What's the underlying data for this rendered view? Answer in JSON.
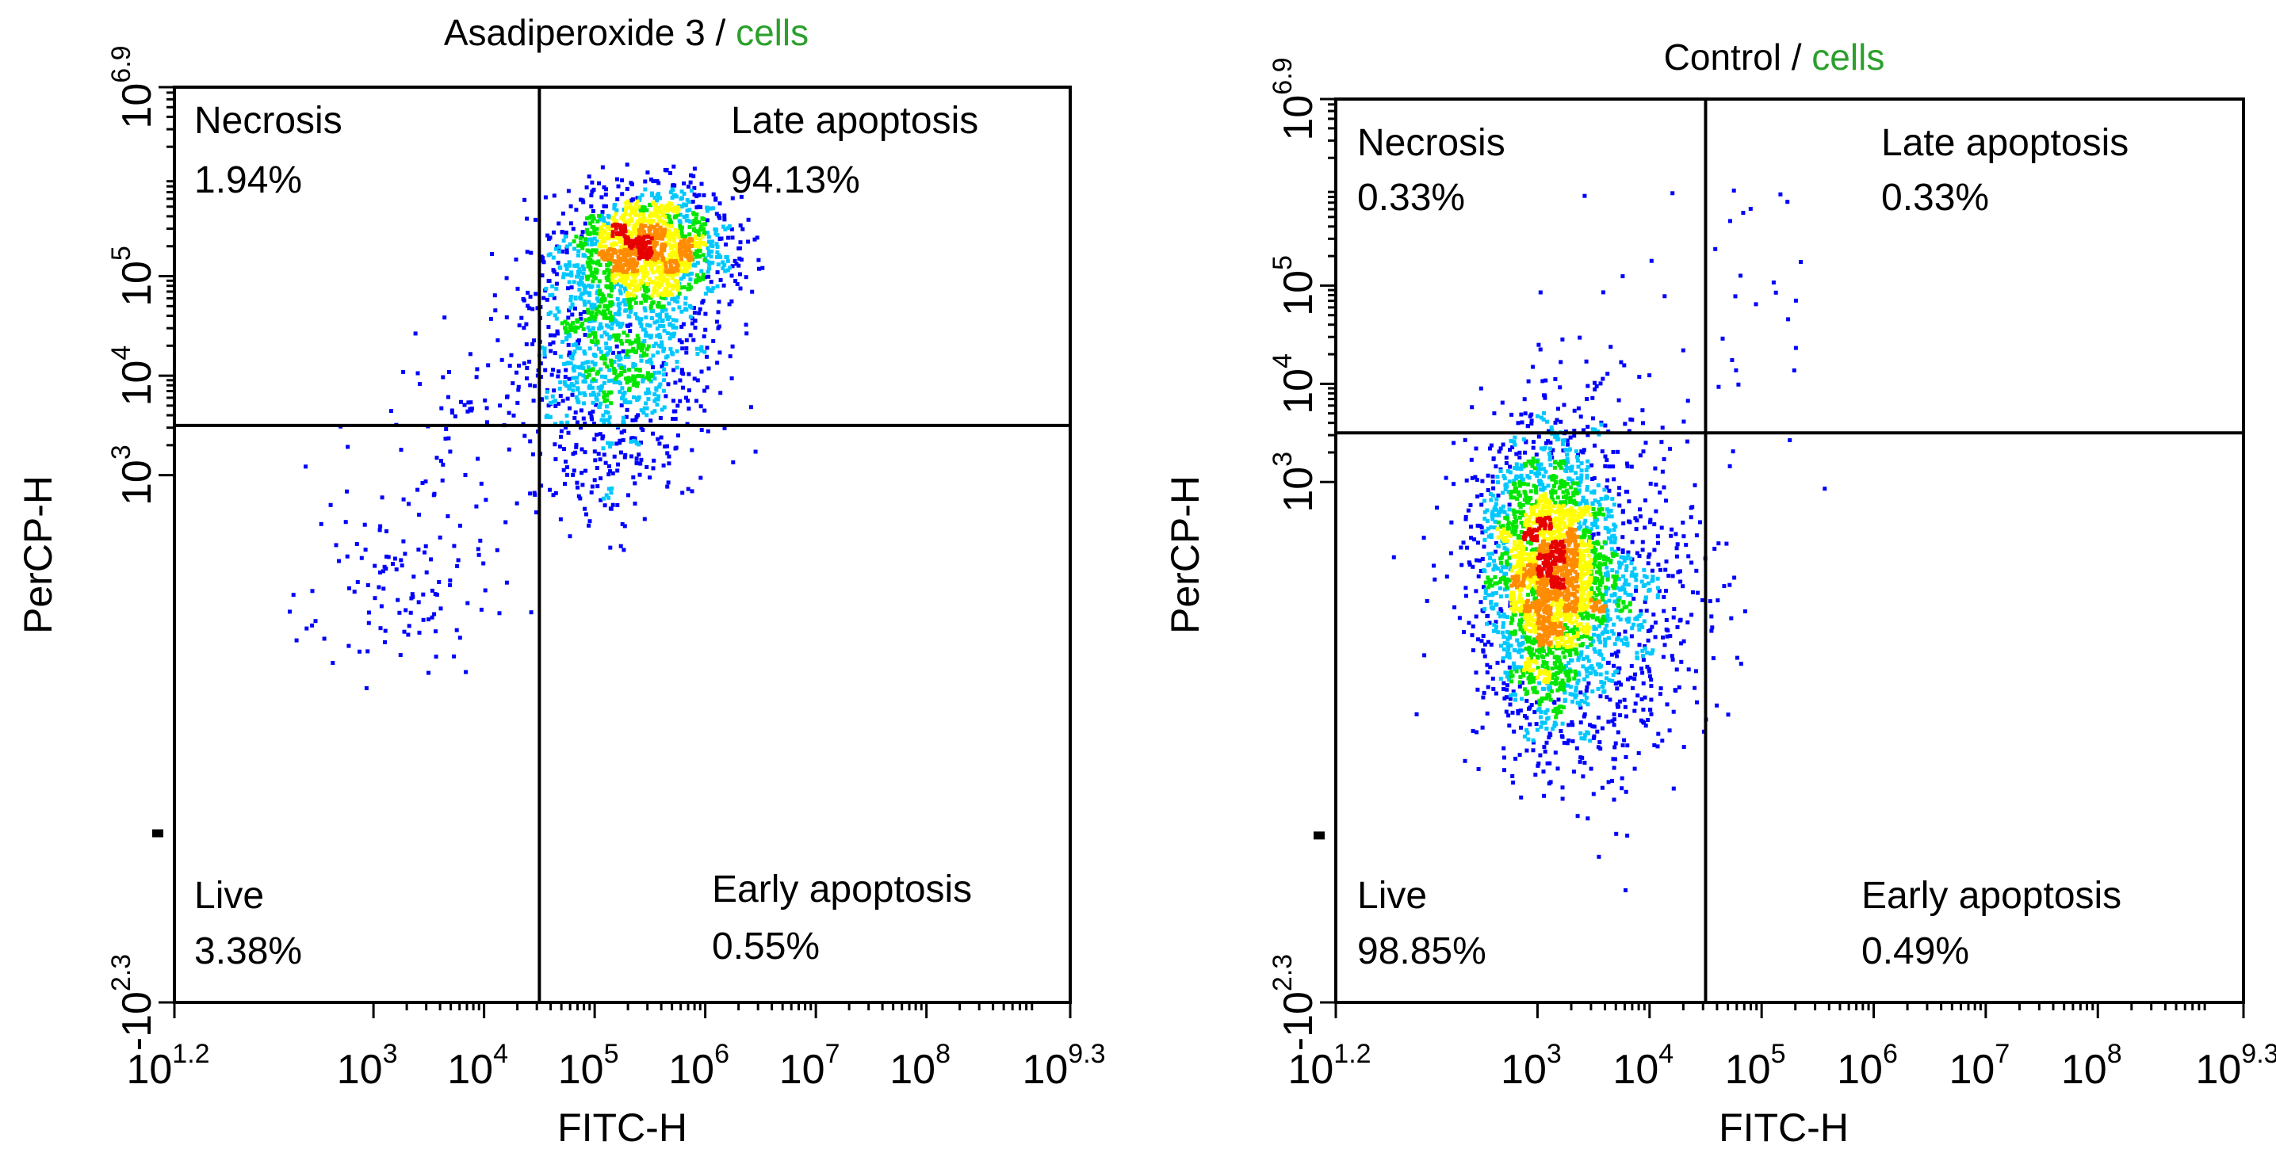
{
  "chart_data": [
    {
      "type": "scatter",
      "subtype": "flow cytometry density dot plot",
      "title_prefix": "Asadiperoxide 3 / ",
      "title_suffix": "cells",
      "title_suffix_color": "#2ca02c",
      "xlabel": "FITC-H",
      "ylabel": "PerCP-H",
      "x_scale": "log",
      "y_scale": "log",
      "xlim": [
        1.2,
        9.3
      ],
      "ylim": [
        -2.3,
        6.9
      ],
      "x_ticks": [
        {
          "base": "10",
          "exp": "1.2",
          "value": 1.2
        },
        {
          "base": "10",
          "exp": "3",
          "value": 3
        },
        {
          "base": "10",
          "exp": "4",
          "value": 4
        },
        {
          "base": "10",
          "exp": "5",
          "value": 5
        },
        {
          "base": "10",
          "exp": "6",
          "value": 6
        },
        {
          "base": "10",
          "exp": "7",
          "value": 7
        },
        {
          "base": "10",
          "exp": "8",
          "value": 8
        },
        {
          "base": "10",
          "exp": "9.3",
          "value": 9.3
        }
      ],
      "y_ticks": [
        {
          "base": "-10",
          "exp": "2.3",
          "value": -2.3
        },
        {
          "base": "10",
          "exp": "3",
          "value": 3
        },
        {
          "base": "10",
          "exp": "4",
          "value": 4
        },
        {
          "base": "10",
          "exp": "5",
          "value": 5
        },
        {
          "base": "10",
          "exp": "6.9",
          "value": 6.9
        }
      ],
      "gate": {
        "x": 4.5,
        "y": 3.5
      },
      "quadrants": [
        {
          "name": "Necrosis",
          "percent": "1.94%",
          "position": "top-left"
        },
        {
          "name": "Late apoptosis",
          "percent": "94.13%",
          "position": "top-right"
        },
        {
          "name": "Live",
          "percent": "3.38%",
          "position": "bottom-left"
        },
        {
          "name": "Early apoptosis",
          "percent": "0.55%",
          "position": "bottom-right"
        }
      ],
      "populations": [
        {
          "cx": 5.5,
          "cy": 5.3,
          "sx": 0.38,
          "sy": 0.3,
          "n": 1300
        },
        {
          "cx": 5.2,
          "cy": 4.3,
          "sx": 0.42,
          "sy": 0.55,
          "n": 1000
        },
        {
          "cx": 5.0,
          "cy": 3.0,
          "sx": 0.4,
          "sy": 0.3,
          "n": 90
        },
        {
          "cx": 3.3,
          "cy": 2.0,
          "sx": 0.45,
          "sy": 0.55,
          "n": 130
        },
        {
          "cx": 4.0,
          "cy": 3.8,
          "sx": 0.5,
          "sy": 0.5,
          "n": 60
        }
      ],
      "colors": [
        "#0000ff",
        "#00c8ff",
        "#00e600",
        "#ffff00",
        "#ff8c00",
        "#e60000"
      ]
    },
    {
      "type": "scatter",
      "subtype": "flow cytometry density dot plot",
      "title_prefix": "Control / ",
      "title_suffix": "cells",
      "title_suffix_color": "#2ca02c",
      "xlabel": "FITC-H",
      "ylabel": "PerCP-H",
      "x_scale": "log",
      "y_scale": "log",
      "xlim": [
        1.2,
        9.3
      ],
      "ylim": [
        -2.3,
        6.9
      ],
      "x_ticks": [
        {
          "base": "10",
          "exp": "1.2",
          "value": 1.2
        },
        {
          "base": "10",
          "exp": "3",
          "value": 3
        },
        {
          "base": "10",
          "exp": "4",
          "value": 4
        },
        {
          "base": "10",
          "exp": "5",
          "value": 5
        },
        {
          "base": "10",
          "exp": "6",
          "value": 6
        },
        {
          "base": "10",
          "exp": "7",
          "value": 7
        },
        {
          "base": "10",
          "exp": "8",
          "value": 8
        },
        {
          "base": "10",
          "exp": "9.3",
          "value": 9.3
        }
      ],
      "y_ticks": [
        {
          "base": "-10",
          "exp": "2.3",
          "value": -2.3
        },
        {
          "base": "10",
          "exp": "3",
          "value": 3
        },
        {
          "base": "10",
          "exp": "4",
          "value": 4
        },
        {
          "base": "10",
          "exp": "5",
          "value": 5
        },
        {
          "base": "10",
          "exp": "6.9",
          "value": 6.9
        }
      ],
      "gate": {
        "x": 4.5,
        "y": 3.5
      },
      "quadrants": [
        {
          "name": "Necrosis",
          "percent": "0.33%",
          "position": "top-left"
        },
        {
          "name": "Late apoptosis",
          "percent": "0.33%",
          "position": "top-right"
        },
        {
          "name": "Live",
          "percent": "98.85%",
          "position": "bottom-left"
        },
        {
          "name": "Early apoptosis",
          "percent": "0.49%",
          "position": "bottom-right"
        }
      ],
      "populations": [
        {
          "cx": 3.1,
          "cy": 2.1,
          "sx": 0.3,
          "sy": 0.75,
          "n": 2400
        },
        {
          "cx": 3.6,
          "cy": 1.6,
          "sx": 0.5,
          "sy": 0.8,
          "n": 700
        },
        {
          "cx": 5.0,
          "cy": 4.6,
          "sx": 0.45,
          "sy": 1.0,
          "n": 28
        },
        {
          "cx": 3.8,
          "cy": 4.8,
          "sx": 0.5,
          "sy": 0.8,
          "n": 8
        }
      ],
      "colors": [
        "#0000ff",
        "#00c8ff",
        "#00e600",
        "#ffff00",
        "#ff8c00",
        "#e60000"
      ]
    }
  ]
}
